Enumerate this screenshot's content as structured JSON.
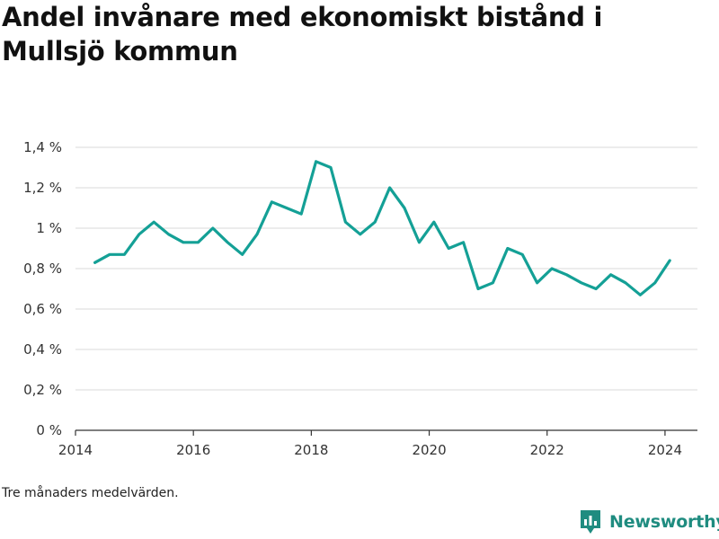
{
  "title": "Andel invånare med ekonomiskt bistånd i Mullsjö kommun",
  "note": "Tre månaders medelvärden.",
  "brand": {
    "name": "Newsworthy",
    "icon": "newsworthy-logo-icon",
    "color": "#1f8c80"
  },
  "chart_data": {
    "type": "line",
    "title": "Andel invånare med ekonomiskt bistånd i Mullsjö kommun",
    "xlabel": "",
    "ylabel": "",
    "xlim": [
      2014,
      2024.55
    ],
    "ylim": [
      0,
      1.4
    ],
    "x_ticks": [
      2014,
      2016,
      2018,
      2020,
      2022,
      2024
    ],
    "y_ticks": [
      {
        "value": 0,
        "label": "0 %"
      },
      {
        "value": 0.2,
        "label": "0,2 %"
      },
      {
        "value": 0.4,
        "label": "0,4 %"
      },
      {
        "value": 0.6,
        "label": "0,6 %"
      },
      {
        "value": 0.8,
        "label": "0,8 %"
      },
      {
        "value": 1.0,
        "label": "1 %"
      },
      {
        "value": 1.2,
        "label": "1,2 %"
      },
      {
        "value": 1.4,
        "label": "1,4 %"
      }
    ],
    "grid": "horizontal",
    "line_color": "#14a096",
    "series": [
      {
        "x": [
          2014.33,
          2014.58,
          2014.83,
          2015.08,
          2015.33,
          2015.58,
          2015.83,
          2016.08,
          2016.33,
          2016.58,
          2016.83,
          2017.08,
          2017.33,
          2017.58,
          2017.83,
          2018.08,
          2018.33,
          2018.58,
          2018.83,
          2019.08,
          2019.33,
          2019.58,
          2019.83,
          2020.08,
          2020.33,
          2020.58,
          2020.83,
          2021.08,
          2021.33,
          2021.58,
          2021.83,
          2022.08,
          2022.33,
          2022.58,
          2022.83,
          2023.08,
          2023.33,
          2023.58,
          2023.83,
          2024.08
        ],
        "values": [
          0.83,
          0.87,
          0.87,
          0.97,
          1.03,
          0.97,
          0.93,
          0.93,
          1.0,
          0.93,
          0.87,
          0.97,
          1.13,
          1.1,
          1.07,
          1.33,
          1.3,
          1.03,
          0.97,
          1.03,
          1.2,
          1.1,
          0.93,
          1.03,
          0.9,
          0.93,
          0.7,
          0.73,
          0.9,
          0.87,
          0.73,
          0.8,
          0.77,
          0.73,
          0.7,
          0.77,
          0.73,
          0.67,
          0.73,
          0.84
        ]
      }
    ]
  }
}
